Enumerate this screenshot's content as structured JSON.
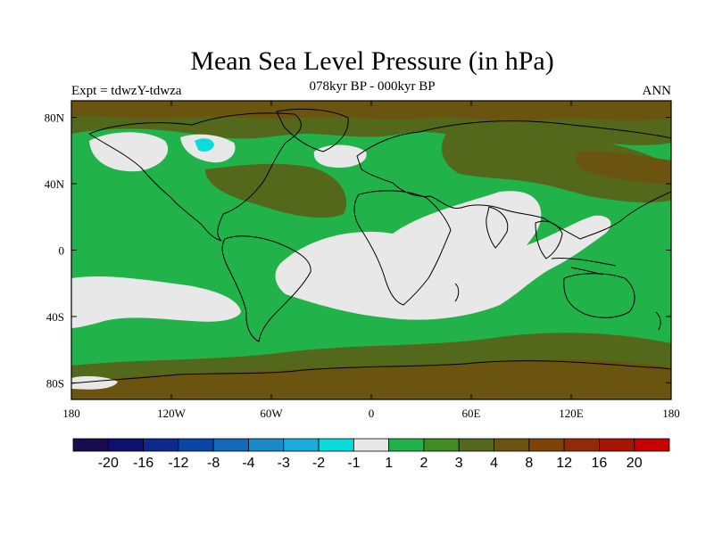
{
  "header": {
    "title": "Mean Sea Level Pressure (in hPa)",
    "subtitle": "078kyr BP - 000kyr BP",
    "left_label": "Expt = tdwzY-tdwza",
    "right_label": "ANN"
  },
  "map": {
    "projection": "cylindrical-equidistant",
    "lon_range": [
      -180,
      180
    ],
    "lat_range": [
      -90,
      90
    ],
    "lon_ticks": [
      {
        "value": -180,
        "label": "180"
      },
      {
        "value": -120,
        "label": "120W"
      },
      {
        "value": -60,
        "label": "60W"
      },
      {
        "value": 0,
        "label": "0"
      },
      {
        "value": 60,
        "label": "60E"
      },
      {
        "value": 120,
        "label": "120E"
      },
      {
        "value": 180,
        "label": "180"
      }
    ],
    "lat_ticks": [
      {
        "value": 80,
        "label": "80N"
      },
      {
        "value": 40,
        "label": "40N"
      },
      {
        "value": 0,
        "label": "0"
      },
      {
        "value": -40,
        "label": "40S"
      },
      {
        "value": -80,
        "label": "80S"
      }
    ]
  },
  "colorbar": {
    "colors": [
      "#1a0a4e",
      "#0e0f6e",
      "#0c2a8c",
      "#0a46a6",
      "#1468b8",
      "#1a8ac8",
      "#18aedc",
      "#08dcdc",
      "#e8e8e8",
      "#22b24a",
      "#3f8c24",
      "#53681a",
      "#6a5410",
      "#7e4406",
      "#922a06",
      "#aa1404",
      "#c80000"
    ],
    "labels": [
      "-20",
      "-16",
      "-12",
      "-8",
      "-4",
      "-3",
      "-2",
      "-1",
      "1",
      "2",
      "3",
      "4",
      "8",
      "12",
      "16",
      "20"
    ]
  },
  "colors": {
    "ocean_dominant": "#22b24a",
    "land_dominant": "#53681a",
    "near_zero": "#e8e8e8",
    "negative_cyan": "#08dcdc"
  }
}
